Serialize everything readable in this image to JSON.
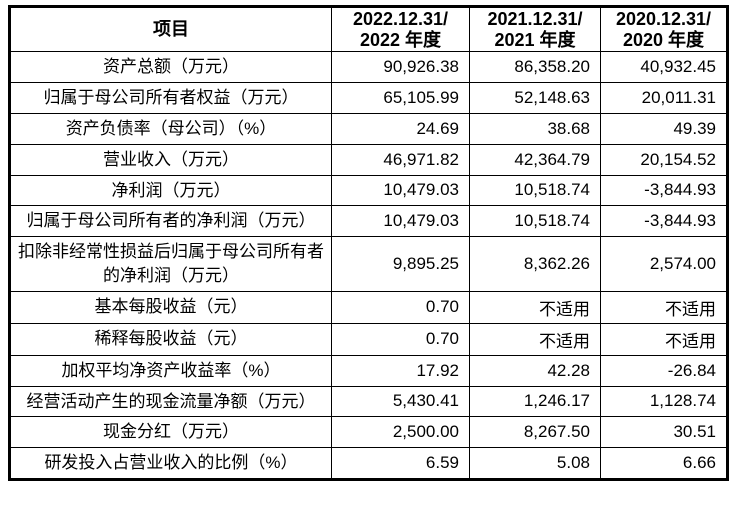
{
  "table": {
    "headers": [
      "项目",
      "2022.12.31/\n2022 年度",
      "2021.12.31/\n2021 年度",
      "2020.12.31/\n2020 年度"
    ],
    "rows": [
      {
        "label": "资产总额（万元）",
        "values": [
          "90,926.38",
          "86,358.20",
          "40,932.45"
        ]
      },
      {
        "label": "归属于母公司所有者权益（万元）",
        "values": [
          "65,105.99",
          "52,148.63",
          "20,011.31"
        ]
      },
      {
        "label": "资产负债率（母公司）（%）",
        "values": [
          "24.69",
          "38.68",
          "49.39"
        ]
      },
      {
        "label": "营业收入（万元）",
        "values": [
          "46,971.82",
          "42,364.79",
          "20,154.52"
        ]
      },
      {
        "label": "净利润（万元）",
        "values": [
          "10,479.03",
          "10,518.74",
          "-3,844.93"
        ]
      },
      {
        "label": "归属于母公司所有者的净利润（万元）",
        "values": [
          "10,479.03",
          "10,518.74",
          "-3,844.93"
        ]
      },
      {
        "label": "扣除非经常性损益后归属于母公司所有者的净利润（万元）",
        "values": [
          "9,895.25",
          "8,362.26",
          "2,574.00"
        ]
      },
      {
        "label": "基本每股收益（元）",
        "values": [
          "0.70",
          "不适用",
          "不适用"
        ]
      },
      {
        "label": "稀释每股收益（元）",
        "values": [
          "0.70",
          "不适用",
          "不适用"
        ]
      },
      {
        "label": "加权平均净资产收益率（%）",
        "values": [
          "17.92",
          "42.28",
          "-26.84"
        ]
      },
      {
        "label": "经营活动产生的现金流量净额（万元）",
        "values": [
          "5,430.41",
          "1,246.17",
          "1,128.74"
        ]
      },
      {
        "label": "现金分红（万元）",
        "values": [
          "2,500.00",
          "8,267.50",
          "30.51"
        ]
      },
      {
        "label": "研发投入占营业收入的比例（%）",
        "values": [
          "6.59",
          "5.08",
          "6.66"
        ]
      }
    ]
  }
}
